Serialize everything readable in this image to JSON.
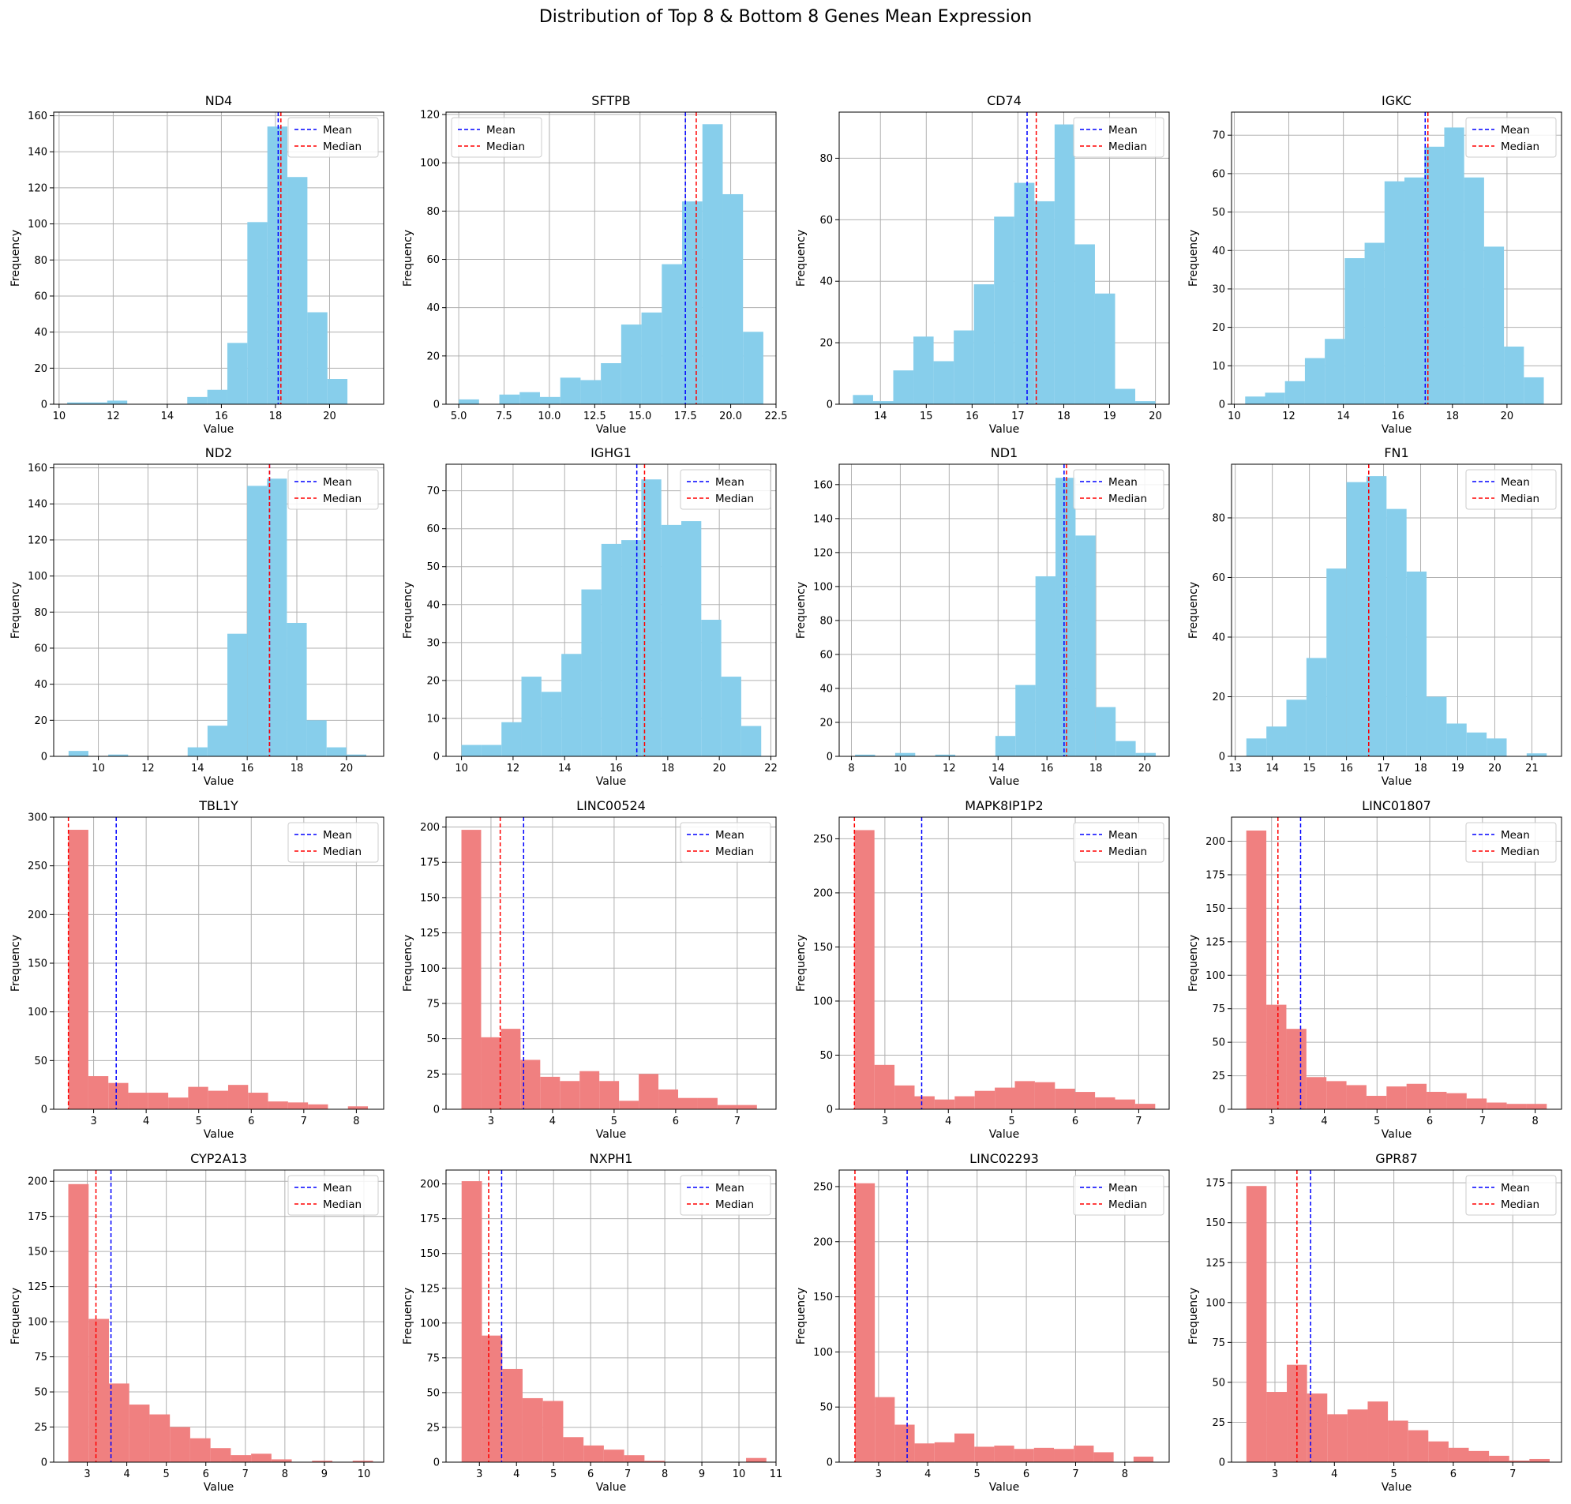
{
  "suptitle": "Distribution of Top 8 & Bottom 8 Genes Mean Expression",
  "colors": {
    "top": "#87ceeb",
    "bottom": "#f08080",
    "mean": "#0000ff",
    "median": "#ff0000",
    "grid": "#b0b0b0"
  },
  "legend_labels": {
    "mean": "Mean",
    "median": "Median"
  },
  "chart_data": [
    {
      "type": "bar",
      "title": "ND4",
      "xlabel": "Value",
      "ylabel": "Frequency",
      "group": "top",
      "xlim": [
        9.8,
        22.0
      ],
      "ylim": [
        0,
        162
      ],
      "xticks": [
        10,
        12,
        14,
        16,
        18,
        20
      ],
      "yticks": [
        0,
        20,
        40,
        60,
        80,
        100,
        120,
        140,
        160
      ],
      "bin_start": 10.3,
      "bin_width": 0.74,
      "values": [
        1,
        1,
        2,
        0,
        0,
        0,
        4,
        8,
        34,
        101,
        154,
        126,
        51,
        14,
        0
      ],
      "mean": 18.1,
      "median": 18.2,
      "legend": "top-right"
    },
    {
      "type": "bar",
      "title": "SFTPB",
      "xlabel": "Value",
      "ylabel": "Frequency",
      "group": "top",
      "xlim": [
        4.3,
        22.5
      ],
      "ylim": [
        0,
        121
      ],
      "xticks": [
        5.0,
        7.5,
        10.0,
        12.5,
        15.0,
        17.5,
        20.0,
        22.5
      ],
      "xtick_labels": [
        "5.0",
        "7.5",
        "10.0",
        "12.5",
        "15.0",
        "17.5",
        "20.0",
        "22.5"
      ],
      "yticks": [
        0,
        20,
        40,
        60,
        80,
        100,
        120
      ],
      "bin_start": 5.0,
      "bin_width": 1.12,
      "values": [
        2,
        0,
        4,
        5,
        3,
        11,
        10,
        17,
        33,
        38,
        58,
        84,
        116,
        87,
        30
      ],
      "mean": 17.5,
      "median": 18.1,
      "legend": "top-left"
    },
    {
      "type": "bar",
      "title": "CD74",
      "xlabel": "Value",
      "ylabel": "Frequency",
      "group": "top",
      "xlim": [
        13.1,
        20.3
      ],
      "ylim": [
        0,
        95
      ],
      "xticks": [
        14,
        15,
        16,
        17,
        18,
        19,
        20
      ],
      "yticks": [
        0,
        20,
        40,
        60,
        80
      ],
      "bin_start": 13.4,
      "bin_width": 0.44,
      "values": [
        3,
        1,
        11,
        22,
        14,
        24,
        39,
        61,
        72,
        66,
        91,
        52,
        36,
        5,
        1
      ],
      "mean": 17.2,
      "median": 17.4,
      "legend": "top-right"
    },
    {
      "type": "bar",
      "title": "IGKC",
      "xlabel": "Value",
      "ylabel": "Frequency",
      "group": "top",
      "xlim": [
        9.9,
        22.0
      ],
      "ylim": [
        0,
        76
      ],
      "xticks": [
        10,
        12,
        14,
        16,
        18,
        20
      ],
      "yticks": [
        0,
        10,
        20,
        30,
        40,
        50,
        60,
        70
      ],
      "bin_start": 10.4,
      "bin_width": 0.73,
      "values": [
        2,
        3,
        6,
        12,
        17,
        38,
        42,
        58,
        59,
        67,
        72,
        59,
        41,
        15,
        7
      ],
      "mean": 17.0,
      "median": 17.1,
      "legend": "top-right"
    },
    {
      "type": "bar",
      "title": "ND2",
      "xlabel": "Value",
      "ylabel": "Frequency",
      "group": "top",
      "xlim": [
        8.2,
        21.5
      ],
      "ylim": [
        0,
        162
      ],
      "xticks": [
        10,
        12,
        14,
        16,
        18,
        20
      ],
      "yticks": [
        0,
        20,
        40,
        60,
        80,
        100,
        120,
        140,
        160
      ],
      "bin_start": 8.8,
      "bin_width": 0.8,
      "values": [
        3,
        0,
        1,
        0,
        0,
        0,
        5,
        17,
        68,
        150,
        154,
        74,
        20,
        5,
        1
      ],
      "mean": 16.9,
      "median": 16.9,
      "legend": "top-right"
    },
    {
      "type": "bar",
      "title": "IGHG1",
      "xlabel": "Value",
      "ylabel": "Frequency",
      "group": "top",
      "xlim": [
        9.4,
        22.2
      ],
      "ylim": [
        0,
        77
      ],
      "xticks": [
        10,
        12,
        14,
        16,
        18,
        20,
        22
      ],
      "yticks": [
        0,
        10,
        20,
        30,
        40,
        50,
        60,
        70
      ],
      "bin_start": 10.0,
      "bin_width": 0.775,
      "values": [
        3,
        3,
        9,
        21,
        17,
        27,
        44,
        56,
        57,
        73,
        61,
        62,
        36,
        21,
        8
      ],
      "mean": 16.8,
      "median": 17.1,
      "legend": "top-right"
    },
    {
      "type": "bar",
      "title": "ND1",
      "xlabel": "Value",
      "ylabel": "Frequency",
      "group": "top",
      "xlim": [
        7.5,
        21.0
      ],
      "ylim": [
        0,
        172
      ],
      "xticks": [
        8,
        10,
        12,
        14,
        16,
        18,
        20
      ],
      "yticks": [
        0,
        20,
        40,
        60,
        80,
        100,
        120,
        140,
        160
      ],
      "bin_start": 8.15,
      "bin_width": 0.82,
      "values": [
        1,
        0,
        2,
        0,
        1,
        0,
        0,
        12,
        42,
        106,
        164,
        130,
        29,
        9,
        2
      ],
      "mean": 16.7,
      "median": 16.8,
      "legend": "top-right"
    },
    {
      "type": "bar",
      "title": "FN1",
      "xlabel": "Value",
      "ylabel": "Frequency",
      "group": "top",
      "xlim": [
        12.9,
        21.8
      ],
      "ylim": [
        0,
        98
      ],
      "xticks": [
        13,
        14,
        15,
        16,
        17,
        18,
        19,
        20,
        21
      ],
      "yticks": [
        0,
        20,
        40,
        60,
        80
      ],
      "bin_start": 13.3,
      "bin_width": 0.54,
      "values": [
        6,
        10,
        19,
        33,
        63,
        92,
        94,
        83,
        62,
        20,
        11,
        8,
        6,
        0,
        1
      ],
      "mean": 16.6,
      "median": 16.6,
      "legend": "top-right"
    },
    {
      "type": "bar",
      "title": "TBL1Y",
      "xlabel": "Value",
      "ylabel": "Frequency",
      "group": "bottom",
      "xlim": [
        2.24,
        8.52
      ],
      "ylim": [
        0,
        300
      ],
      "xticks": [
        3,
        4,
        5,
        6,
        7,
        8
      ],
      "yticks": [
        0,
        50,
        100,
        150,
        200,
        250,
        300
      ],
      "bin_start": 2.52,
      "bin_width": 0.38,
      "values": [
        287,
        34,
        27,
        17,
        17,
        12,
        23,
        19,
        25,
        17,
        8,
        7,
        5,
        0,
        3
      ],
      "mean": 3.43,
      "median": 2.52,
      "legend": "top-right"
    },
    {
      "type": "bar",
      "title": "LINC00524",
      "xlabel": "Value",
      "ylabel": "Frequency",
      "group": "bottom",
      "xlim": [
        2.27,
        7.63
      ],
      "ylim": [
        0,
        207
      ],
      "xticks": [
        3,
        4,
        5,
        6,
        7
      ],
      "yticks": [
        0,
        25,
        50,
        75,
        100,
        125,
        150,
        175,
        200
      ],
      "bin_start": 2.52,
      "bin_width": 0.32,
      "values": [
        198,
        51,
        57,
        35,
        23,
        20,
        27,
        20,
        6,
        25,
        14,
        8,
        8,
        3,
        3
      ],
      "mean": 3.53,
      "median": 3.15,
      "legend": "top-right"
    },
    {
      "type": "bar",
      "title": "MAPK8IP1P2",
      "xlabel": "Value",
      "ylabel": "Frequency",
      "group": "bottom",
      "xlim": [
        2.28,
        7.48
      ],
      "ylim": [
        0,
        270
      ],
      "xticks": [
        3,
        4,
        5,
        6,
        7
      ],
      "yticks": [
        0,
        50,
        100,
        150,
        200,
        250
      ],
      "bin_start": 2.52,
      "bin_width": 0.316,
      "values": [
        258,
        41,
        22,
        12,
        9,
        12,
        17,
        20,
        26,
        25,
        19,
        16,
        11,
        9,
        5
      ],
      "mean": 3.58,
      "median": 2.52,
      "legend": "top-right"
    },
    {
      "type": "bar",
      "title": "LINC01807",
      "xlabel": "Value",
      "ylabel": "Frequency",
      "group": "bottom",
      "xlim": [
        2.24,
        8.5
      ],
      "ylim": [
        0,
        218
      ],
      "xticks": [
        3,
        4,
        5,
        6,
        7,
        8
      ],
      "yticks": [
        0,
        25,
        50,
        75,
        100,
        125,
        150,
        175,
        200
      ],
      "bin_start": 2.52,
      "bin_width": 0.38,
      "values": [
        208,
        78,
        60,
        24,
        21,
        18,
        10,
        17,
        19,
        13,
        12,
        8,
        5,
        4,
        4
      ],
      "mean": 3.55,
      "median": 3.12,
      "legend": "top-right"
    },
    {
      "type": "bar",
      "title": "CYP2A13",
      "xlabel": "Value",
      "ylabel": "Frequency",
      "group": "bottom",
      "xlim": [
        2.15,
        10.5
      ],
      "ylim": [
        0,
        208
      ],
      "xticks": [
        3,
        4,
        5,
        6,
        7,
        8,
        9,
        10
      ],
      "yticks": [
        0,
        25,
        50,
        75,
        100,
        125,
        150,
        175,
        200
      ],
      "bin_start": 2.52,
      "bin_width": 0.514,
      "values": [
        198,
        102,
        56,
        41,
        34,
        25,
        17,
        10,
        5,
        6,
        2,
        0,
        1,
        0,
        1
      ],
      "mean": 3.6,
      "median": 3.22,
      "legend": "top-right"
    },
    {
      "type": "bar",
      "title": "NXPH1",
      "xlabel": "Value",
      "ylabel": "Frequency",
      "group": "bottom",
      "xlim": [
        2.1,
        11.0
      ],
      "ylim": [
        0,
        210
      ],
      "xticks": [
        3,
        4,
        5,
        6,
        7,
        8,
        9,
        10,
        11
      ],
      "yticks": [
        0,
        25,
        50,
        75,
        100,
        125,
        150,
        175,
        200
      ],
      "bin_start": 2.52,
      "bin_width": 0.548,
      "values": [
        202,
        91,
        67,
        46,
        44,
        18,
        12,
        9,
        5,
        1,
        0,
        0,
        0,
        0,
        3
      ],
      "mean": 3.6,
      "median": 3.25,
      "legend": "top-right"
    },
    {
      "type": "bar",
      "title": "LINC02293",
      "xlabel": "Value",
      "ylabel": "Frequency",
      "group": "bottom",
      "xlim": [
        2.2,
        8.9
      ],
      "ylim": [
        0,
        265
      ],
      "xticks": [
        3,
        4,
        5,
        6,
        7,
        8
      ],
      "yticks": [
        0,
        50,
        100,
        150,
        200,
        250
      ],
      "bin_start": 2.52,
      "bin_width": 0.404,
      "values": [
        253,
        59,
        34,
        17,
        18,
        26,
        14,
        15,
        12,
        13,
        12,
        15,
        9,
        0,
        5
      ],
      "mean": 3.58,
      "median": 2.52,
      "legend": "top-right"
    },
    {
      "type": "bar",
      "title": "GPR87",
      "xlabel": "Value",
      "ylabel": "Frequency",
      "group": "bottom",
      "xlim": [
        2.27,
        7.82
      ],
      "ylim": [
        0,
        183
      ],
      "xticks": [
        3,
        4,
        5,
        6,
        7
      ],
      "yticks": [
        0,
        25,
        50,
        75,
        100,
        125,
        150,
        175
      ],
      "bin_start": 2.52,
      "bin_width": 0.34,
      "values": [
        173,
        44,
        61,
        43,
        30,
        33,
        38,
        26,
        20,
        13,
        9,
        7,
        4,
        1,
        2
      ],
      "mean": 3.6,
      "median": 3.37,
      "legend": "top-right"
    }
  ]
}
